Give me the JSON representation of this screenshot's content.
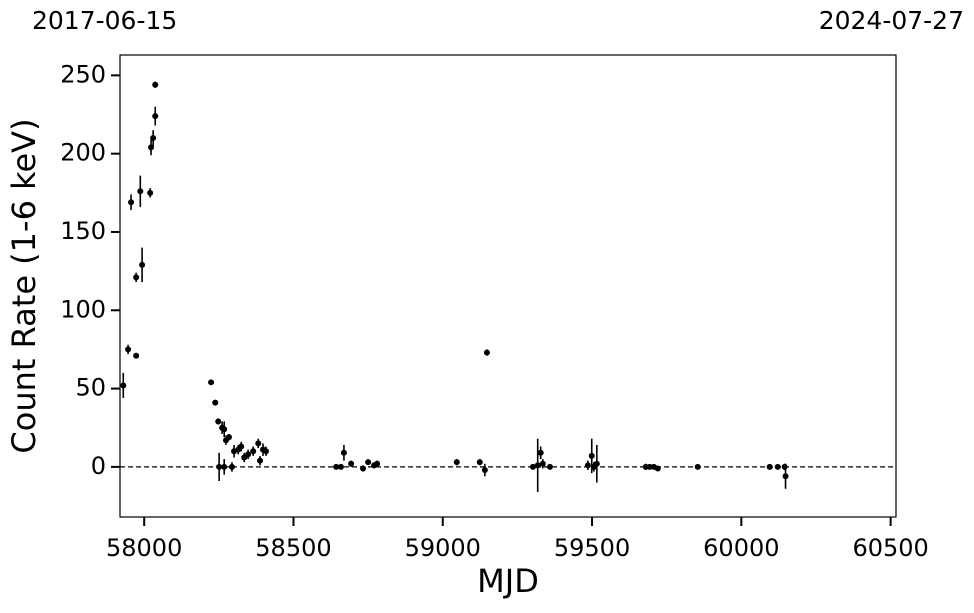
{
  "chart_data": {
    "type": "scatter",
    "annotations": [
      "2017-06-15",
      "2024-07-27"
    ],
    "x_label": "MJD",
    "y_label": "Count Rate (1-6 keV)",
    "xlim": [
      57919,
      60518
    ],
    "ylim": [
      -32,
      263
    ],
    "xticks": [
      58000,
      58500,
      59000,
      59500,
      60000,
      60500
    ],
    "yticks": [
      0,
      50,
      100,
      150,
      200,
      250
    ],
    "reference_line": 0,
    "color": "#000000",
    "x": [
      57930,
      57946,
      57956,
      57973,
      57973,
      57987,
      57993,
      58020,
      58023,
      58030,
      58037,
      58037,
      58224,
      58238,
      58248,
      58251,
      58261,
      58268,
      58274,
      58284,
      58268,
      58294,
      58301,
      58315,
      58325,
      58335,
      58348,
      58365,
      58382,
      58388,
      58398,
      58408,
      58643,
      58659,
      58669,
      58693,
      58733,
      58750,
      58770,
      58780,
      59047,
      59124,
      59141,
      59148,
      59302,
      59318,
      59328,
      59335,
      59359,
      59486,
      59499,
      59506,
      59516,
      59680,
      59693,
      59707,
      59720,
      59854,
      60095,
      60122,
      60145,
      60148
    ],
    "values": [
      52,
      75,
      169,
      121,
      71,
      176,
      129,
      175,
      204,
      210,
      224,
      244,
      54,
      41,
      29,
      0,
      25,
      24,
      17,
      19,
      0,
      0,
      10,
      11,
      13,
      6,
      8,
      10,
      15,
      4,
      11,
      10,
      0,
      0,
      9,
      2,
      -1,
      3,
      1,
      2,
      3,
      3,
      -2,
      73,
      0,
      1,
      9,
      2,
      0,
      1,
      7,
      0,
      2,
      0,
      0,
      0,
      -1,
      0,
      0,
      0,
      0,
      -6
    ],
    "errors": [
      8,
      3,
      5,
      3,
      1,
      10,
      11,
      3,
      5,
      5,
      6,
      2,
      1,
      1,
      2,
      9,
      4,
      5,
      3,
      2,
      5,
      3,
      4,
      3,
      3,
      3,
      3,
      3,
      3,
      3,
      4,
      3,
      1,
      1,
      5,
      2,
      2,
      1,
      2,
      2,
      2,
      2,
      4,
      2,
      1,
      17,
      4,
      3,
      1,
      3,
      11,
      3,
      12,
      2,
      1,
      1,
      1,
      1,
      1,
      1,
      2,
      8
    ]
  }
}
